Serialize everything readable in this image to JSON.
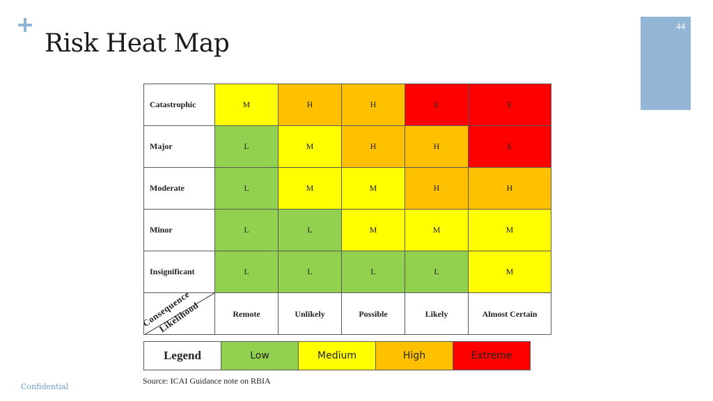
{
  "slide": {
    "title": "Risk Heat Map",
    "page_number": "44",
    "source_note": "Source: ICAI Guidance note on RBIA",
    "footer": "Confidential"
  },
  "colors": {
    "L": "#92d050",
    "M": "#ffff00",
    "H": "#ffc000",
    "E": "#ff0000",
    "accent": "#94b6d6"
  },
  "chart_data": {
    "type": "heatmap",
    "title": "Risk Heat Map",
    "corner_labels": [
      "Consequence",
      "Likelihood"
    ],
    "y_axis": "Consequence",
    "x_axis": "Likelihood",
    "rows": [
      "Catastrophic",
      "Major",
      "Moderate",
      "Minor",
      "Insignificant"
    ],
    "columns": [
      "Remote",
      "Unlikely",
      "Possible",
      "Likely",
      "Almost Certain"
    ],
    "values": [
      [
        "M",
        "H",
        "H",
        "E",
        "E"
      ],
      [
        "L",
        "M",
        "H",
        "H",
        "E"
      ],
      [
        "L",
        "M",
        "M",
        "H",
        "H"
      ],
      [
        "L",
        "L",
        "M",
        "M",
        "M"
      ],
      [
        "L",
        "L",
        "L",
        "L",
        "M"
      ]
    ],
    "legend": {
      "title": "Legend",
      "items": [
        {
          "code": "L",
          "label": "Low",
          "color": "#92d050"
        },
        {
          "code": "M",
          "label": "Medium",
          "color": "#ffff00"
        },
        {
          "code": "H",
          "label": "High",
          "color": "#ffc000"
        },
        {
          "code": "E",
          "label": "Extreme",
          "color": "#ff0000"
        }
      ]
    }
  }
}
